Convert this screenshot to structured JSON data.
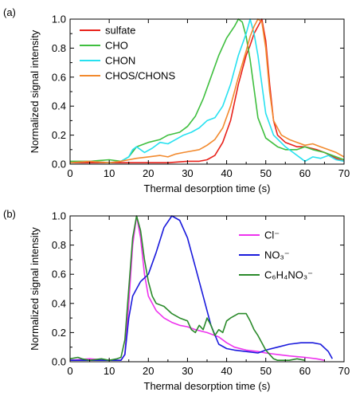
{
  "chart_data": [
    {
      "panel_label": "(a)",
      "type": "line",
      "xlabel": "Thermal desorption time (s)",
      "ylabel": "Normalized signal intensity",
      "xlim": [
        0,
        70
      ],
      "ylim": [
        0,
        1.0
      ],
      "xticks": [
        0,
        10,
        20,
        30,
        40,
        50,
        60,
        70
      ],
      "yticks": [
        0.0,
        0.2,
        0.4,
        0.6,
        0.8,
        1.0
      ],
      "xtick_labels": [
        "0",
        "10",
        "20",
        "30",
        "40",
        "50",
        "60",
        "70"
      ],
      "ytick_labels": [
        "0.0",
        "0.2",
        "0.4",
        "0.6",
        "0.8",
        "1.0"
      ],
      "grid": false,
      "legend_position": "top-left",
      "series": [
        {
          "name": "sulfate",
          "color": "#e8221b",
          "points": [
            [
              0,
              0.01
            ],
            [
              5,
              0.01
            ],
            [
              10,
              0.01
            ],
            [
              15,
              0.01
            ],
            [
              20,
              0.01
            ],
            [
              25,
              0.01
            ],
            [
              30,
              0.02
            ],
            [
              33,
              0.02
            ],
            [
              35,
              0.03
            ],
            [
              37,
              0.06
            ],
            [
              39,
              0.15
            ],
            [
              41,
              0.3
            ],
            [
              43,
              0.55
            ],
            [
              44,
              0.65
            ],
            [
              45,
              0.75
            ],
            [
              46,
              0.82
            ],
            [
              47,
              0.9
            ],
            [
              48,
              0.95
            ],
            [
              49,
              1.0
            ],
            [
              50,
              0.85
            ],
            [
              51,
              0.55
            ],
            [
              52,
              0.3
            ],
            [
              53,
              0.2
            ],
            [
              55,
              0.15
            ],
            [
              58,
              0.12
            ],
            [
              60,
              0.12
            ],
            [
              63,
              0.1
            ],
            [
              65,
              0.08
            ],
            [
              68,
              0.04
            ],
            [
              70,
              0.02
            ]
          ]
        },
        {
          "name": "CHO",
          "color": "#3fbf3f",
          "points": [
            [
              0,
              0.02
            ],
            [
              5,
              0.02
            ],
            [
              10,
              0.03
            ],
            [
              13,
              0.02
            ],
            [
              15,
              0.05
            ],
            [
              17,
              0.12
            ],
            [
              20,
              0.15
            ],
            [
              23,
              0.17
            ],
            [
              25,
              0.2
            ],
            [
              28,
              0.22
            ],
            [
              30,
              0.26
            ],
            [
              32,
              0.33
            ],
            [
              34,
              0.45
            ],
            [
              36,
              0.6
            ],
            [
              38,
              0.75
            ],
            [
              40,
              0.87
            ],
            [
              42,
              0.95
            ],
            [
              43,
              1.0
            ],
            [
              44,
              0.98
            ],
            [
              45,
              0.88
            ],
            [
              46,
              0.72
            ],
            [
              47,
              0.52
            ],
            [
              48,
              0.32
            ],
            [
              50,
              0.18
            ],
            [
              53,
              0.12
            ],
            [
              55,
              0.1
            ],
            [
              58,
              0.1
            ],
            [
              60,
              0.12
            ],
            [
              62,
              0.1
            ],
            [
              65,
              0.08
            ],
            [
              68,
              0.05
            ],
            [
              70,
              0.03
            ]
          ]
        },
        {
          "name": "CHON",
          "color": "#27e1f0",
          "points": [
            [
              0,
              0.01
            ],
            [
              5,
              0.02
            ],
            [
              10,
              0.01
            ],
            [
              13,
              0.02
            ],
            [
              15,
              0.05
            ],
            [
              16,
              0.1
            ],
            [
              17,
              0.12
            ],
            [
              19,
              0.08
            ],
            [
              21,
              0.11
            ],
            [
              23,
              0.15
            ],
            [
              25,
              0.14
            ],
            [
              27,
              0.17
            ],
            [
              29,
              0.2
            ],
            [
              31,
              0.22
            ],
            [
              33,
              0.25
            ],
            [
              35,
              0.3
            ],
            [
              37,
              0.32
            ],
            [
              39,
              0.4
            ],
            [
              41,
              0.55
            ],
            [
              43,
              0.75
            ],
            [
              45,
              0.9
            ],
            [
              46,
              1.0
            ],
            [
              47,
              0.9
            ],
            [
              48,
              0.75
            ],
            [
              49,
              0.55
            ],
            [
              50,
              0.35
            ],
            [
              52,
              0.2
            ],
            [
              55,
              0.12
            ],
            [
              57,
              0.08
            ],
            [
              59,
              0.04
            ],
            [
              60,
              0.02
            ],
            [
              62,
              0.05
            ],
            [
              64,
              0.04
            ],
            [
              66,
              0.06
            ],
            [
              68,
              0.03
            ],
            [
              70,
              0.02
            ]
          ]
        },
        {
          "name": "CHOS/CHONS",
          "color": "#f28a2e",
          "points": [
            [
              0,
              0.01
            ],
            [
              5,
              0.02
            ],
            [
              10,
              0.01
            ],
            [
              13,
              0.02
            ],
            [
              15,
              0.03
            ],
            [
              17,
              0.04
            ],
            [
              20,
              0.05
            ],
            [
              23,
              0.06
            ],
            [
              25,
              0.05
            ],
            [
              27,
              0.07
            ],
            [
              29,
              0.08
            ],
            [
              31,
              0.09
            ],
            [
              33,
              0.1
            ],
            [
              35,
              0.13
            ],
            [
              37,
              0.17
            ],
            [
              39,
              0.25
            ],
            [
              41,
              0.4
            ],
            [
              43,
              0.6
            ],
            [
              45,
              0.78
            ],
            [
              46,
              0.88
            ],
            [
              47,
              0.95
            ],
            [
              48,
              1.0
            ],
            [
              49,
              0.98
            ],
            [
              50,
              0.8
            ],
            [
              51,
              0.5
            ],
            [
              52,
              0.3
            ],
            [
              54,
              0.2
            ],
            [
              56,
              0.17
            ],
            [
              58,
              0.15
            ],
            [
              60,
              0.13
            ],
            [
              62,
              0.14
            ],
            [
              64,
              0.12
            ],
            [
              66,
              0.1
            ],
            [
              68,
              0.08
            ],
            [
              70,
              0.05
            ]
          ]
        }
      ]
    },
    {
      "panel_label": "(b)",
      "type": "line",
      "xlabel": "Thermal desorption time (s)",
      "ylabel": "Normalized signal intensity",
      "xlim": [
        0,
        70
      ],
      "ylim": [
        0,
        1.0
      ],
      "xticks": [
        0,
        10,
        20,
        30,
        40,
        50,
        60,
        70
      ],
      "yticks": [
        0.0,
        0.2,
        0.4,
        0.6,
        0.8,
        1.0
      ],
      "xtick_labels": [
        "0",
        "10",
        "20",
        "30",
        "40",
        "50",
        "60",
        "70"
      ],
      "ytick_labels": [
        "0.0",
        "0.2",
        "0.4",
        "0.6",
        "0.8",
        "1.0"
      ],
      "grid": false,
      "legend_position": "top-right",
      "series": [
        {
          "name": "Cl⁻",
          "color": "#ee33ee",
          "points": [
            [
              0,
              0.01
            ],
            [
              5,
              0.02
            ],
            [
              10,
              0.01
            ],
            [
              13,
              0.01
            ],
            [
              14,
              0.05
            ],
            [
              15,
              0.4
            ],
            [
              16,
              0.8
            ],
            [
              17,
              1.0
            ],
            [
              18,
              0.85
            ],
            [
              19,
              0.6
            ],
            [
              20,
              0.45
            ],
            [
              22,
              0.35
            ],
            [
              24,
              0.3
            ],
            [
              26,
              0.27
            ],
            [
              28,
              0.25
            ],
            [
              30,
              0.24
            ],
            [
              32,
              0.22
            ],
            [
              35,
              0.2
            ],
            [
              38,
              0.17
            ],
            [
              40,
              0.13
            ],
            [
              42,
              0.1
            ],
            [
              45,
              0.08
            ],
            [
              48,
              0.07
            ],
            [
              50,
              0.06
            ],
            [
              53,
              0.05
            ],
            [
              56,
              0.04
            ],
            [
              60,
              0.03
            ],
            [
              63,
              0.02
            ],
            [
              65,
              0.01
            ]
          ]
        },
        {
          "name": "NO₃⁻",
          "color": "#1a1adc",
          "points": [
            [
              0,
              0.01
            ],
            [
              5,
              0.01
            ],
            [
              10,
              0.01
            ],
            [
              13,
              0.01
            ],
            [
              14,
              0.05
            ],
            [
              15,
              0.3
            ],
            [
              16,
              0.45
            ],
            [
              17,
              0.5
            ],
            [
              18,
              0.55
            ],
            [
              20,
              0.6
            ],
            [
              22,
              0.75
            ],
            [
              24,
              0.92
            ],
            [
              26,
              1.0
            ],
            [
              28,
              0.97
            ],
            [
              30,
              0.85
            ],
            [
              32,
              0.65
            ],
            [
              34,
              0.45
            ],
            [
              36,
              0.25
            ],
            [
              38,
              0.12
            ],
            [
              40,
              0.09
            ],
            [
              42,
              0.08
            ],
            [
              45,
              0.07
            ],
            [
              48,
              0.06
            ],
            [
              50,
              0.08
            ],
            [
              53,
              0.1
            ],
            [
              56,
              0.12
            ],
            [
              59,
              0.13
            ],
            [
              62,
              0.13
            ],
            [
              64,
              0.12
            ],
            [
              66,
              0.07
            ],
            [
              67,
              0.02
            ]
          ]
        },
        {
          "name": "C₆H₄NO₃⁻",
          "color": "#2a8a2a",
          "points": [
            [
              0,
              0.02
            ],
            [
              2,
              0.03
            ],
            [
              3,
              0.02
            ],
            [
              5,
              0.01
            ],
            [
              8,
              0.02
            ],
            [
              10,
              0.01
            ],
            [
              12,
              0.02
            ],
            [
              13,
              0.03
            ],
            [
              14,
              0.15
            ],
            [
              15,
              0.5
            ],
            [
              16,
              0.85
            ],
            [
              17,
              1.0
            ],
            [
              18,
              0.9
            ],
            [
              19,
              0.7
            ],
            [
              20,
              0.55
            ],
            [
              21,
              0.45
            ],
            [
              22,
              0.4
            ],
            [
              24,
              0.38
            ],
            [
              26,
              0.33
            ],
            [
              28,
              0.3
            ],
            [
              30,
              0.28
            ],
            [
              31,
              0.22
            ],
            [
              32,
              0.2
            ],
            [
              33,
              0.25
            ],
            [
              34,
              0.22
            ],
            [
              35,
              0.3
            ],
            [
              36,
              0.25
            ],
            [
              37,
              0.18
            ],
            [
              38,
              0.22
            ],
            [
              39,
              0.2
            ],
            [
              40,
              0.28
            ],
            [
              41,
              0.3
            ],
            [
              43,
              0.33
            ],
            [
              45,
              0.33
            ],
            [
              46,
              0.28
            ],
            [
              47,
              0.22
            ],
            [
              48,
              0.18
            ],
            [
              49,
              0.13
            ],
            [
              50,
              0.08
            ],
            [
              51,
              0.05
            ],
            [
              52,
              0.02
            ],
            [
              53,
              0.01
            ],
            [
              56,
              0.01
            ],
            [
              58,
              0.02
            ],
            [
              60,
              0.01
            ]
          ]
        }
      ]
    }
  ]
}
